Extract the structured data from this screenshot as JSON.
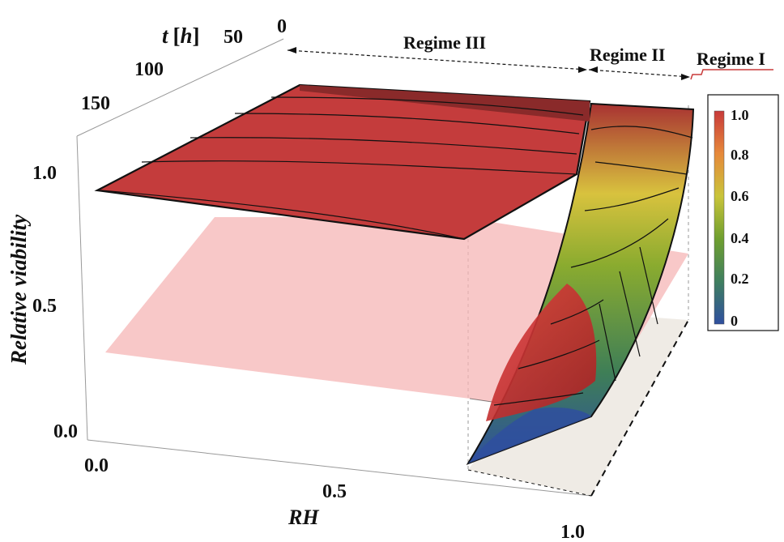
{
  "chart_data": {
    "type": "surface3d",
    "title": "",
    "axes": {
      "x": {
        "label": "RH",
        "ticks": [
          "0.0",
          "0.5",
          "1.0"
        ],
        "range": [
          0,
          1
        ]
      },
      "y": {
        "label": "t [h]",
        "label_var": "t",
        "label_unit": "h",
        "ticks": [
          "0",
          "50",
          "100",
          "150"
        ],
        "range": [
          0,
          150
        ]
      },
      "z": {
        "label": "Relative viability",
        "ticks": [
          "0.0",
          "0.5",
          "1.0"
        ],
        "range": [
          0,
          1
        ]
      }
    },
    "regions": [
      {
        "name": "Regime III",
        "rh_range": [
          0.0,
          0.8
        ]
      },
      {
        "name": "Regime II",
        "rh_range": [
          0.8,
          0.97
        ]
      },
      {
        "name": "Regime I",
        "rh_range": [
          0.97,
          1.0
        ]
      }
    ],
    "reference_plane": {
      "z": 0.5
    },
    "colorbar": {
      "ticks": [
        "0",
        "0.2",
        "0.4",
        "0.6",
        "0.8",
        "1.0"
      ],
      "range": [
        0,
        1
      ],
      "colors": [
        "#2f4f9f",
        "#3f7f5f",
        "#6f9f2f",
        "#c9c43a",
        "#e6893a",
        "#c83a3a"
      ]
    },
    "surface_samples": [
      {
        "rh": 0.0,
        "t": 0,
        "viability": 1.0
      },
      {
        "rh": 0.0,
        "t": 150,
        "viability": 1.0
      },
      {
        "rh": 0.8,
        "t": 0,
        "viability": 1.0
      },
      {
        "rh": 0.8,
        "t": 150,
        "viability": 0.98
      },
      {
        "rh": 0.85,
        "t": 0,
        "viability": 1.0
      },
      {
        "rh": 0.85,
        "t": 150,
        "viability": 0.05
      },
      {
        "rh": 1.0,
        "t": 0,
        "viability": 1.0
      },
      {
        "rh": 1.0,
        "t": 150,
        "viability": 0.4
      }
    ]
  }
}
